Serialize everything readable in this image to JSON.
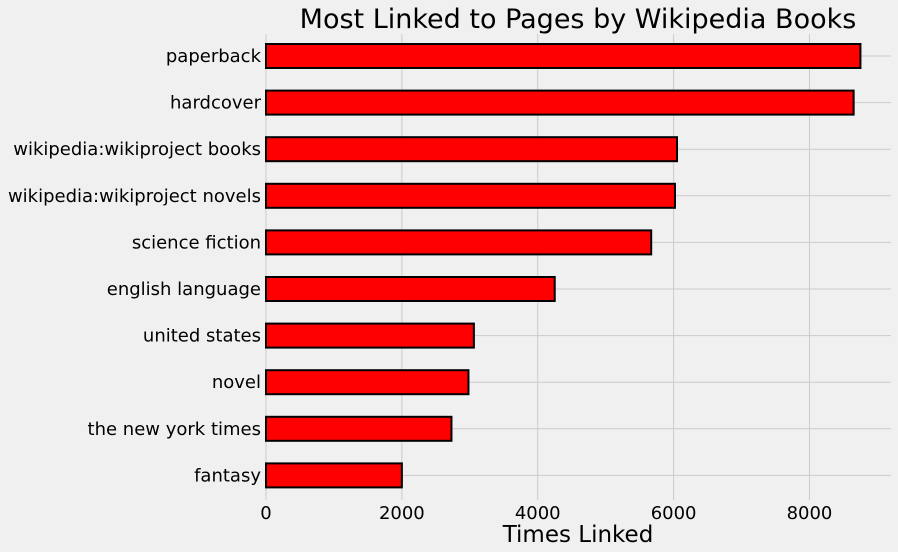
{
  "chart_data": {
    "type": "bar",
    "orientation": "horizontal",
    "title": "Most Linked to Pages by Wikipedia Books",
    "xlabel": "Times Linked",
    "ylabel": "",
    "categories": [
      "paperback",
      "hardcover",
      "wikipedia:wikiproject books",
      "wikipedia:wikiproject novels",
      "science fiction",
      "english language",
      "united states",
      "novel",
      "the new york times",
      "fantasy"
    ],
    "values": [
      8750,
      8650,
      6050,
      6020,
      5670,
      4250,
      3060,
      2980,
      2730,
      2000
    ],
    "xlim": [
      0,
      9200
    ],
    "xticks": [
      0,
      2000,
      4000,
      6000,
      8000
    ],
    "bar_color": "#ff0000",
    "edge_color": "#000000",
    "grid": true
  }
}
